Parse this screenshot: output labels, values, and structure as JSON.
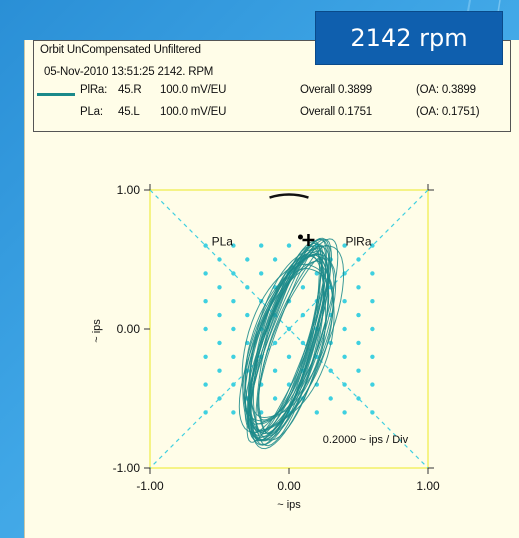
{
  "header": {
    "line1": "Orbit  UnCompensated  Unfiltered",
    "line2": "05-Nov-2010 13:51:25   2142. RPM",
    "probe1_name": "PlRa:",
    "probe1_angle": "45.R",
    "probe1_sens": "100.0 mV/EU",
    "probe1_overall": "Overall  0.3899",
    "probe1_oa": "(OA: 0.3899",
    "probe2_name": "PLa:",
    "probe2_angle": "45.L",
    "probe2_sens": "100.0 mV/EU",
    "probe2_overall": "Overall  0.1751",
    "probe2_oa": "(OA: 0.1751)"
  },
  "rpm_badge": "2142 rpm",
  "colors": {
    "orbit": "#1b8a8a",
    "probe_axis": "#3fd0e0",
    "frame": "#f2f066",
    "badge_bg": "#0f5fae",
    "panel_bg": "#fffde8"
  },
  "chart_data": {
    "type": "scatter",
    "x_range": [
      -1.0,
      1.0
    ],
    "y_range": [
      -1.0,
      1.0
    ],
    "x_ticks": [
      "-1.00",
      "0.00",
      "1.00"
    ],
    "y_ticks": [
      "1.00",
      "0.00",
      "-1.00"
    ],
    "xlabel": "~ ips",
    "ylabel": "~ ips",
    "probe_labels": [
      "PLa",
      "PlRa"
    ],
    "scale_text": "0.2000 ~ ips / Div",
    "orbit": {
      "center": [
        0.0,
        -0.1
      ],
      "major_axis_angle_deg": 72,
      "major_half_length": 0.74,
      "minor_half_width": 0.23,
      "passes": 28
    },
    "keyphasor_marker": [
      0.14,
      0.64
    ],
    "rotation_mark": [
      0.0,
      0.96
    ],
    "grid": "dotted diamond lattice"
  }
}
